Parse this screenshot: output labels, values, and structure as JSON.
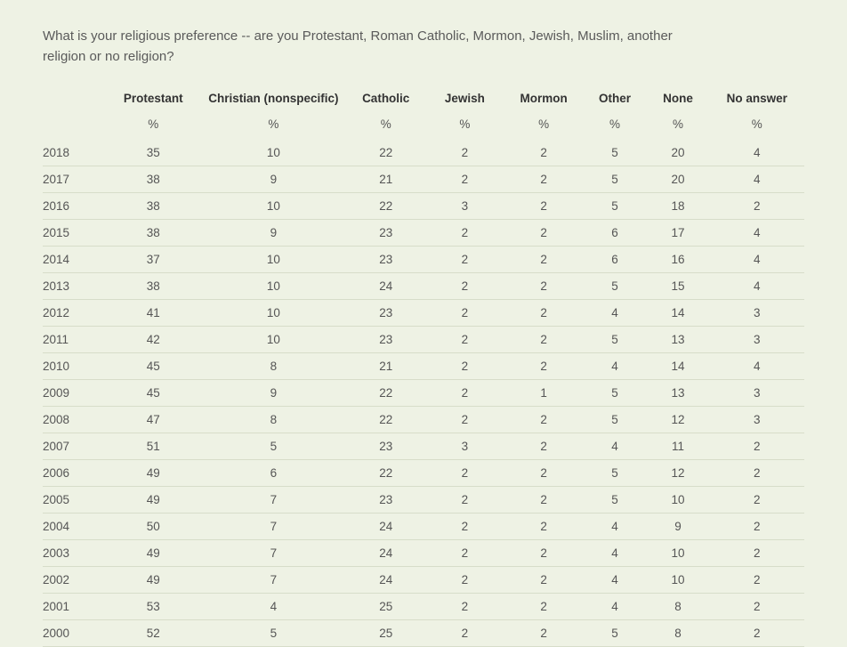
{
  "question": "What is your religious preference -- are you Protestant, Roman Catholic, Mormon, Jewish, Muslim, another religion or no religion?",
  "unit_label": "%",
  "table": {
    "type": "table",
    "background_color": "#eef2e4",
    "row_border_color": "#d7ddc9",
    "header_text_color": "#333",
    "body_text_color": "#555",
    "font_size_body": 13.5,
    "font_size_question": 15,
    "columns": [
      {
        "key": "year",
        "label": "",
        "class": "col-year",
        "align": "left"
      },
      {
        "key": "protestant",
        "label": "Protestant",
        "class": "col-protestant",
        "align": "center"
      },
      {
        "key": "christian",
        "label": "Christian (nonspecific)",
        "class": "col-christian",
        "align": "center"
      },
      {
        "key": "catholic",
        "label": "Catholic",
        "class": "col-catholic",
        "align": "center"
      },
      {
        "key": "jewish",
        "label": "Jewish",
        "class": "col-jewish",
        "align": "center"
      },
      {
        "key": "mormon",
        "label": "Mormon",
        "class": "col-mormon",
        "align": "center"
      },
      {
        "key": "other",
        "label": "Other",
        "class": "col-other",
        "align": "center"
      },
      {
        "key": "none",
        "label": "None",
        "class": "col-none",
        "align": "center"
      },
      {
        "key": "noanswer",
        "label": "No answer",
        "class": "col-noanswer",
        "align": "center"
      }
    ],
    "rows": [
      {
        "year": "2018",
        "protestant": "35",
        "christian": "10",
        "catholic": "22",
        "jewish": "2",
        "mormon": "2",
        "other": "5",
        "none": "20",
        "noanswer": "4"
      },
      {
        "year": "2017",
        "protestant": "38",
        "christian": "9",
        "catholic": "21",
        "jewish": "2",
        "mormon": "2",
        "other": "5",
        "none": "20",
        "noanswer": "4"
      },
      {
        "year": "2016",
        "protestant": "38",
        "christian": "10",
        "catholic": "22",
        "jewish": "3",
        "mormon": "2",
        "other": "5",
        "none": "18",
        "noanswer": "2"
      },
      {
        "year": "2015",
        "protestant": "38",
        "christian": "9",
        "catholic": "23",
        "jewish": "2",
        "mormon": "2",
        "other": "6",
        "none": "17",
        "noanswer": "4"
      },
      {
        "year": "2014",
        "protestant": "37",
        "christian": "10",
        "catholic": "23",
        "jewish": "2",
        "mormon": "2",
        "other": "6",
        "none": "16",
        "noanswer": "4"
      },
      {
        "year": "2013",
        "protestant": "38",
        "christian": "10",
        "catholic": "24",
        "jewish": "2",
        "mormon": "2",
        "other": "5",
        "none": "15",
        "noanswer": "4"
      },
      {
        "year": "2012",
        "protestant": "41",
        "christian": "10",
        "catholic": "23",
        "jewish": "2",
        "mormon": "2",
        "other": "4",
        "none": "14",
        "noanswer": "3"
      },
      {
        "year": "2011",
        "protestant": "42",
        "christian": "10",
        "catholic": "23",
        "jewish": "2",
        "mormon": "2",
        "other": "5",
        "none": "13",
        "noanswer": "3"
      },
      {
        "year": "2010",
        "protestant": "45",
        "christian": "8",
        "catholic": "21",
        "jewish": "2",
        "mormon": "2",
        "other": "4",
        "none": "14",
        "noanswer": "4"
      },
      {
        "year": "2009",
        "protestant": "45",
        "christian": "9",
        "catholic": "22",
        "jewish": "2",
        "mormon": "1",
        "other": "5",
        "none": "13",
        "noanswer": "3"
      },
      {
        "year": "2008",
        "protestant": "47",
        "christian": "8",
        "catholic": "22",
        "jewish": "2",
        "mormon": "2",
        "other": "5",
        "none": "12",
        "noanswer": "3"
      },
      {
        "year": "2007",
        "protestant": "51",
        "christian": "5",
        "catholic": "23",
        "jewish": "3",
        "mormon": "2",
        "other": "4",
        "none": "11",
        "noanswer": "2"
      },
      {
        "year": "2006",
        "protestant": "49",
        "christian": "6",
        "catholic": "22",
        "jewish": "2",
        "mormon": "2",
        "other": "5",
        "none": "12",
        "noanswer": "2"
      },
      {
        "year": "2005",
        "protestant": "49",
        "christian": "7",
        "catholic": "23",
        "jewish": "2",
        "mormon": "2",
        "other": "5",
        "none": "10",
        "noanswer": "2"
      },
      {
        "year": "2004",
        "protestant": "50",
        "christian": "7",
        "catholic": "24",
        "jewish": "2",
        "mormon": "2",
        "other": "4",
        "none": "9",
        "noanswer": "2"
      },
      {
        "year": "2003",
        "protestant": "49",
        "christian": "7",
        "catholic": "24",
        "jewish": "2",
        "mormon": "2",
        "other": "4",
        "none": "10",
        "noanswer": "2"
      },
      {
        "year": "2002",
        "protestant": "49",
        "christian": "7",
        "catholic": "24",
        "jewish": "2",
        "mormon": "2",
        "other": "4",
        "none": "10",
        "noanswer": "2"
      },
      {
        "year": "2001",
        "protestant": "53",
        "christian": "4",
        "catholic": "25",
        "jewish": "2",
        "mormon": "2",
        "other": "4",
        "none": "8",
        "noanswer": "2"
      },
      {
        "year": "2000",
        "protestant": "52",
        "christian": "5",
        "catholic": "25",
        "jewish": "2",
        "mormon": "2",
        "other": "5",
        "none": "8",
        "noanswer": "2"
      }
    ]
  }
}
